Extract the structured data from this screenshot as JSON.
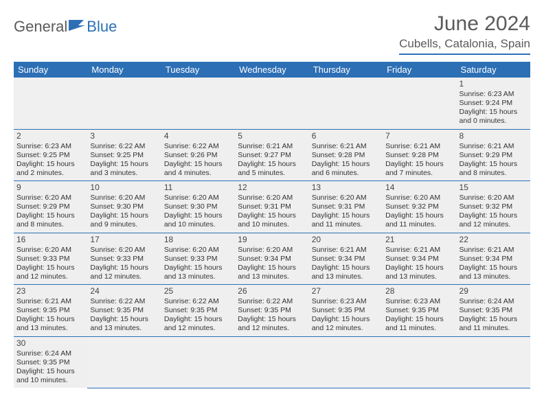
{
  "brand": {
    "part1": "General",
    "part2": "Blue"
  },
  "title": "June 2024",
  "location": "Cubells, Catalonia, Spain",
  "colors": {
    "header_bg": "#2c6fb5",
    "header_text": "#ffffff",
    "rule": "#2c6fb5",
    "shade": "#efefef",
    "body_text": "#333333",
    "title_text": "#5a5a5a"
  },
  "day_headers": [
    "Sunday",
    "Monday",
    "Tuesday",
    "Wednesday",
    "Thursday",
    "Friday",
    "Saturday"
  ],
  "days": {
    "1": {
      "sr": "6:23 AM",
      "ss": "9:24 PM",
      "dl": "15 hours and 0 minutes."
    },
    "2": {
      "sr": "6:23 AM",
      "ss": "9:25 PM",
      "dl": "15 hours and 2 minutes."
    },
    "3": {
      "sr": "6:22 AM",
      "ss": "9:25 PM",
      "dl": "15 hours and 3 minutes."
    },
    "4": {
      "sr": "6:22 AM",
      "ss": "9:26 PM",
      "dl": "15 hours and 4 minutes."
    },
    "5": {
      "sr": "6:21 AM",
      "ss": "9:27 PM",
      "dl": "15 hours and 5 minutes."
    },
    "6": {
      "sr": "6:21 AM",
      "ss": "9:28 PM",
      "dl": "15 hours and 6 minutes."
    },
    "7": {
      "sr": "6:21 AM",
      "ss": "9:28 PM",
      "dl": "15 hours and 7 minutes."
    },
    "8": {
      "sr": "6:21 AM",
      "ss": "9:29 PM",
      "dl": "15 hours and 8 minutes."
    },
    "9": {
      "sr": "6:20 AM",
      "ss": "9:29 PM",
      "dl": "15 hours and 8 minutes."
    },
    "10": {
      "sr": "6:20 AM",
      "ss": "9:30 PM",
      "dl": "15 hours and 9 minutes."
    },
    "11": {
      "sr": "6:20 AM",
      "ss": "9:30 PM",
      "dl": "15 hours and 10 minutes."
    },
    "12": {
      "sr": "6:20 AM",
      "ss": "9:31 PM",
      "dl": "15 hours and 10 minutes."
    },
    "13": {
      "sr": "6:20 AM",
      "ss": "9:31 PM",
      "dl": "15 hours and 11 minutes."
    },
    "14": {
      "sr": "6:20 AM",
      "ss": "9:32 PM",
      "dl": "15 hours and 11 minutes."
    },
    "15": {
      "sr": "6:20 AM",
      "ss": "9:32 PM",
      "dl": "15 hours and 12 minutes."
    },
    "16": {
      "sr": "6:20 AM",
      "ss": "9:33 PM",
      "dl": "15 hours and 12 minutes."
    },
    "17": {
      "sr": "6:20 AM",
      "ss": "9:33 PM",
      "dl": "15 hours and 12 minutes."
    },
    "18": {
      "sr": "6:20 AM",
      "ss": "9:33 PM",
      "dl": "15 hours and 13 minutes."
    },
    "19": {
      "sr": "6:20 AM",
      "ss": "9:34 PM",
      "dl": "15 hours and 13 minutes."
    },
    "20": {
      "sr": "6:21 AM",
      "ss": "9:34 PM",
      "dl": "15 hours and 13 minutes."
    },
    "21": {
      "sr": "6:21 AM",
      "ss": "9:34 PM",
      "dl": "15 hours and 13 minutes."
    },
    "22": {
      "sr": "6:21 AM",
      "ss": "9:34 PM",
      "dl": "15 hours and 13 minutes."
    },
    "23": {
      "sr": "6:21 AM",
      "ss": "9:35 PM",
      "dl": "15 hours and 13 minutes."
    },
    "24": {
      "sr": "6:22 AM",
      "ss": "9:35 PM",
      "dl": "15 hours and 13 minutes."
    },
    "25": {
      "sr": "6:22 AM",
      "ss": "9:35 PM",
      "dl": "15 hours and 12 minutes."
    },
    "26": {
      "sr": "6:22 AM",
      "ss": "9:35 PM",
      "dl": "15 hours and 12 minutes."
    },
    "27": {
      "sr": "6:23 AM",
      "ss": "9:35 PM",
      "dl": "15 hours and 12 minutes."
    },
    "28": {
      "sr": "6:23 AM",
      "ss": "9:35 PM",
      "dl": "15 hours and 11 minutes."
    },
    "29": {
      "sr": "6:24 AM",
      "ss": "9:35 PM",
      "dl": "15 hours and 11 minutes."
    },
    "30": {
      "sr": "6:24 AM",
      "ss": "9:35 PM",
      "dl": "15 hours and 10 minutes."
    }
  },
  "labels": {
    "sunrise": "Sunrise: ",
    "sunset": "Sunset: ",
    "daylight": "Daylight: "
  },
  "grid": [
    [
      null,
      null,
      null,
      null,
      null,
      null,
      "1"
    ],
    [
      "2",
      "3",
      "4",
      "5",
      "6",
      "7",
      "8"
    ],
    [
      "9",
      "10",
      "11",
      "12",
      "13",
      "14",
      "15"
    ],
    [
      "16",
      "17",
      "18",
      "19",
      "20",
      "21",
      "22"
    ],
    [
      "23",
      "24",
      "25",
      "26",
      "27",
      "28",
      "29"
    ],
    [
      "30",
      null,
      null,
      null,
      null,
      null,
      null
    ]
  ]
}
